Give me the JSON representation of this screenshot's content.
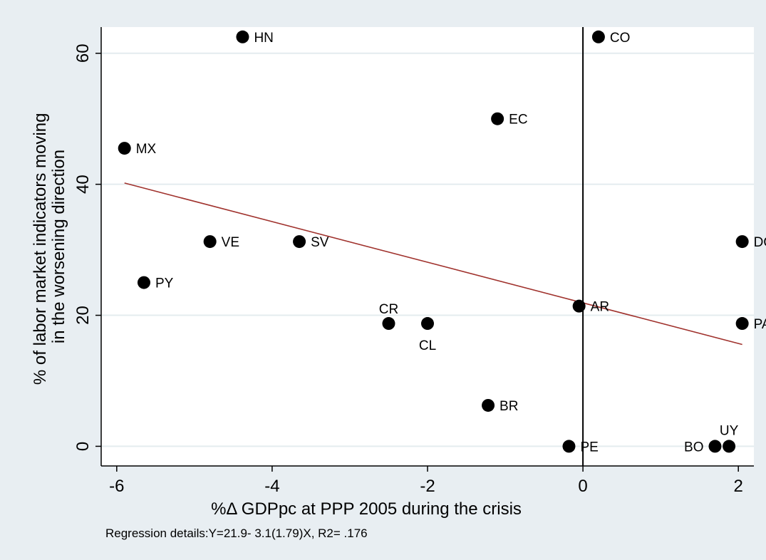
{
  "chart_data": {
    "type": "scatter",
    "title": "",
    "xlabel": "%Δ GDPpc at PPP 2005 during the crisis",
    "ylabel_lines": [
      "% of labor market indicators moving",
      "in the worsening direction"
    ],
    "xlim": [
      -6.2,
      2.2
    ],
    "ylim": [
      -3,
      64
    ],
    "xticks": [
      -6,
      -4,
      -2,
      0,
      2
    ],
    "yticks": [
      0,
      20,
      40,
      60
    ],
    "grid": "horizontal",
    "vertical_reference_line_x": 0,
    "points": [
      {
        "label": "HN",
        "x": -4.38,
        "y": 62.5
      },
      {
        "label": "CO",
        "x": 0.2,
        "y": 62.5
      },
      {
        "label": "EC",
        "x": -1.1,
        "y": 50.0
      },
      {
        "label": "MX",
        "x": -5.9,
        "y": 45.5
      },
      {
        "label": "VE",
        "x": -4.8,
        "y": 31.25
      },
      {
        "label": "SV",
        "x": -3.65,
        "y": 31.25
      },
      {
        "label": "DO",
        "x": 2.05,
        "y": 31.25
      },
      {
        "label": "PY",
        "x": -5.65,
        "y": 25.0
      },
      {
        "label": "AR",
        "x": -0.05,
        "y": 21.4
      },
      {
        "label": "CR",
        "x": -2.5,
        "y": 18.75
      },
      {
        "label": "CL",
        "x": -2.0,
        "y": 18.75
      },
      {
        "label": "PA",
        "x": 2.05,
        "y": 18.75
      },
      {
        "label": "BR",
        "x": -1.22,
        "y": 6.25
      },
      {
        "label": "PE",
        "x": -0.18,
        "y": 0.0
      },
      {
        "label": "BO",
        "x": 1.7,
        "y": 0.0
      },
      {
        "label": "UY",
        "x": 1.88,
        "y": 0.0
      }
    ],
    "fit_line": {
      "intercept": 21.9,
      "slope": -3.1,
      "x_range": [
        -5.9,
        2.05
      ]
    },
    "note": "Regression details:Y=21.9- 3.1(1.79)X, R2= .176"
  },
  "colors": {
    "outer_background": "#e8eef2",
    "plot_background": "#ffffff",
    "gridline": "#e4ecef",
    "marker": "#000000",
    "fit_line": "#a0322d",
    "reference_line": "#000000"
  }
}
